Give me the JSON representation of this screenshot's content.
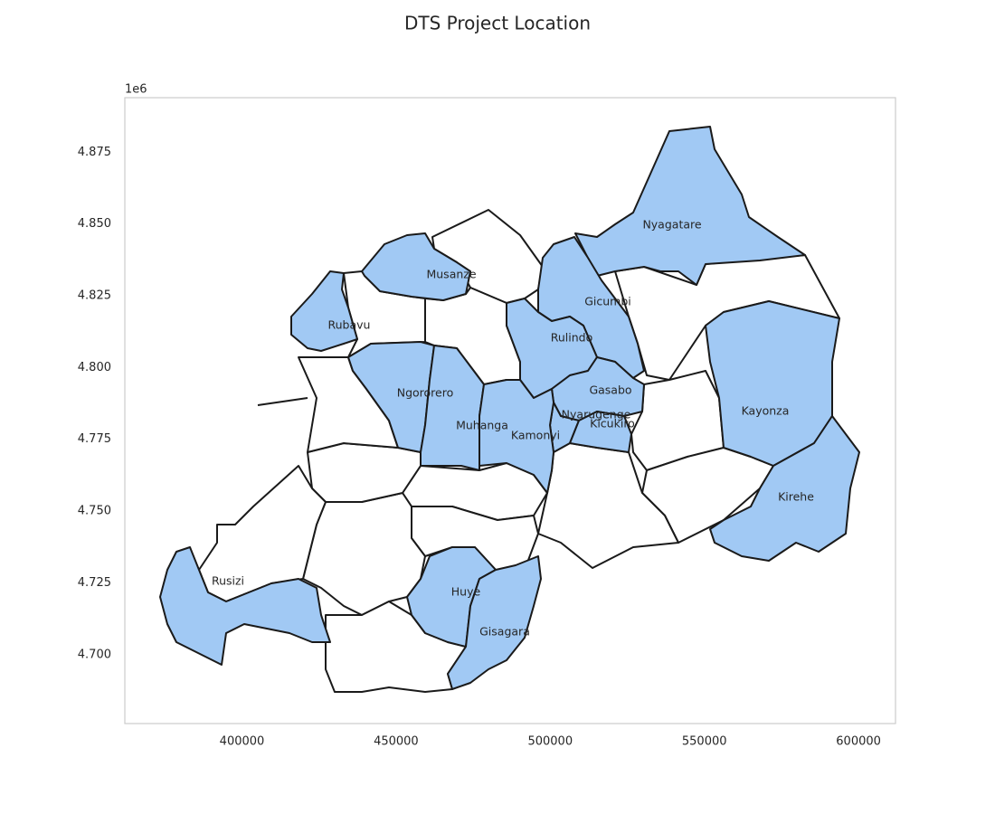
{
  "chart_data": {
    "type": "map",
    "title": "DTS Project Location",
    "y_offset_label": "1e6",
    "xlim": [
      362000,
      612000
    ],
    "ylim": [
      4676000,
      4894000
    ],
    "xticks": [
      400000,
      450000,
      500000,
      550000,
      600000
    ],
    "yticks": [
      {
        "value": 4700000,
        "label": "4.700"
      },
      {
        "value": 4725000,
        "label": "4.725"
      },
      {
        "value": 4750000,
        "label": "4.750"
      },
      {
        "value": 4775000,
        "label": "4.775"
      },
      {
        "value": 4800000,
        "label": "4.800"
      },
      {
        "value": 4825000,
        "label": "4.825"
      },
      {
        "value": 4850000,
        "label": "4.850"
      },
      {
        "value": 4875000,
        "label": "4.875"
      }
    ],
    "grid": false,
    "highlight_color": "#a1c9f4",
    "regions": [
      {
        "name": "Nyagatare",
        "highlighted": true
      },
      {
        "name": "Musanze",
        "highlighted": true
      },
      {
        "name": "Gicumbi",
        "highlighted": true
      },
      {
        "name": "Rubavu",
        "highlighted": true
      },
      {
        "name": "Rulindo",
        "highlighted": true
      },
      {
        "name": "Gasabo",
        "highlighted": true
      },
      {
        "name": "Ngororero",
        "highlighted": true
      },
      {
        "name": "Kayonza",
        "highlighted": true
      },
      {
        "name": "Nyarugenge",
        "highlighted": true
      },
      {
        "name": "Kicukiro",
        "highlighted": true
      },
      {
        "name": "Muhanga",
        "highlighted": true
      },
      {
        "name": "Kamonyi",
        "highlighted": true
      },
      {
        "name": "Kirehe",
        "highlighted": true
      },
      {
        "name": "Rusizi",
        "highlighted": true
      },
      {
        "name": "Huye",
        "highlighted": true
      },
      {
        "name": "Gisagara",
        "highlighted": true
      }
    ]
  }
}
